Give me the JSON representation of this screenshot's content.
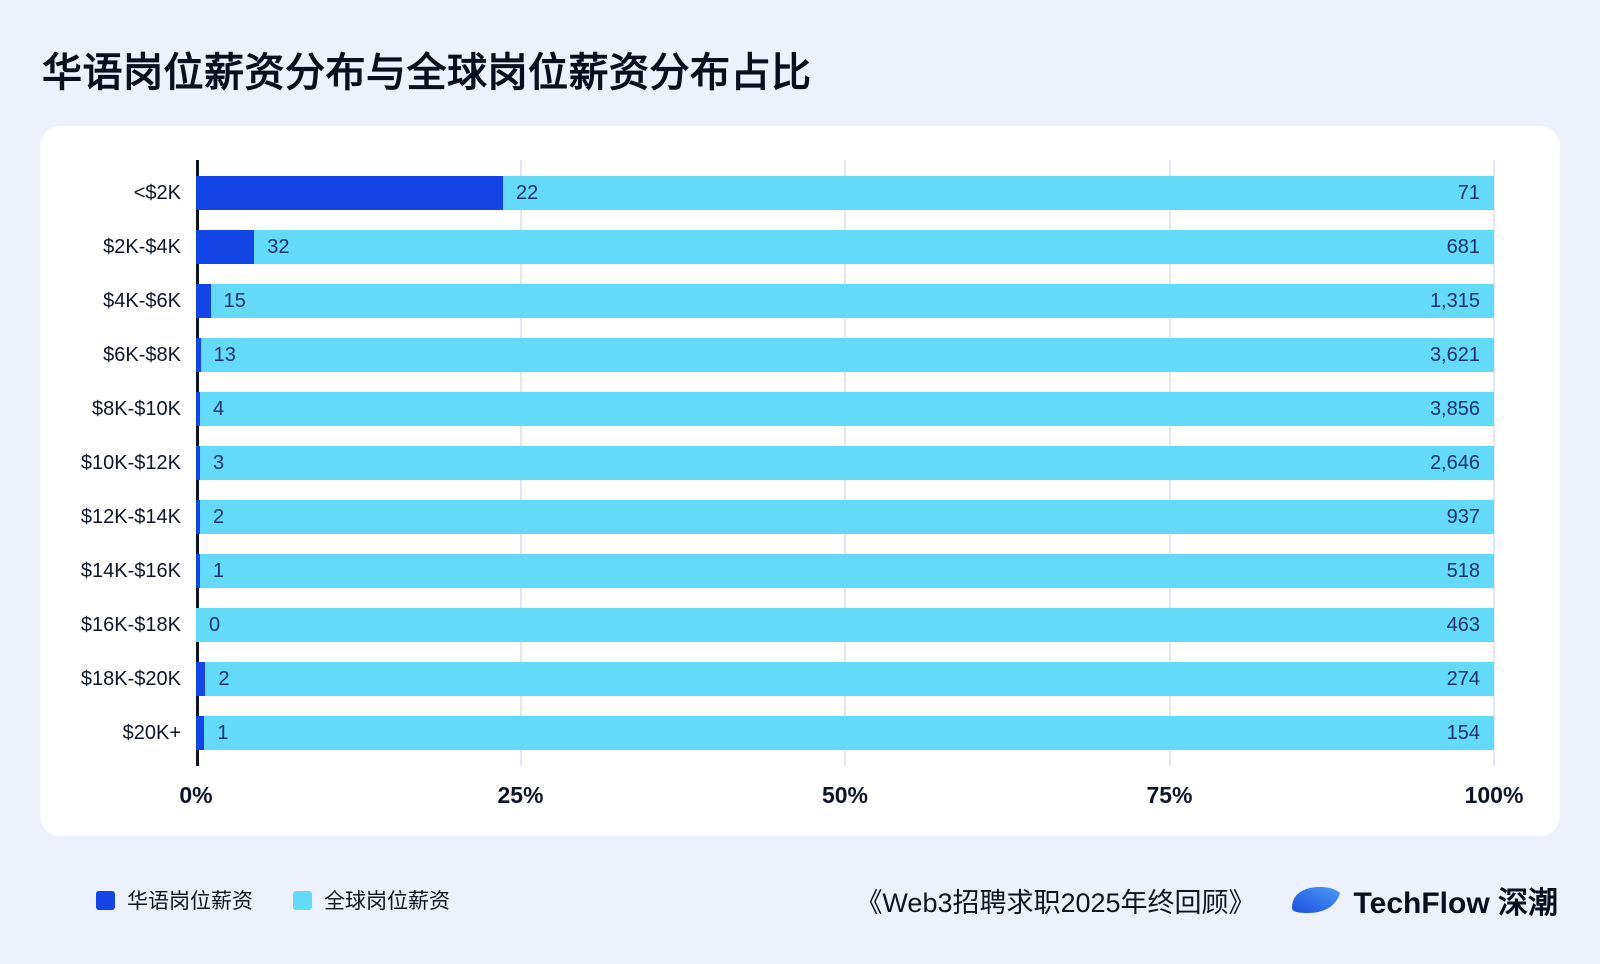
{
  "page": {
    "title": "华语岗位薪资分布与全球岗位薪资分布占比",
    "background_color": "#edf1fb"
  },
  "chart_data": {
    "type": "bar",
    "subtype": "horizontal-100pct-stacked",
    "title": "华语岗位薪资分布与全球岗位薪资分布占比",
    "categories": [
      "<$2K",
      "$2K-$4K",
      "$4K-$6K",
      "$6K-$8K",
      "$8K-$10K",
      "$10K-$12K",
      "$12K-$14K",
      "$14K-$16K",
      "$16K-$18K",
      "$18K-$20K",
      "$20K+"
    ],
    "series": [
      {
        "name": "华语岗位薪资",
        "color": "#1344e5",
        "values": [
          22,
          32,
          15,
          13,
          4,
          3,
          2,
          1,
          0,
          2,
          1
        ]
      },
      {
        "name": "全球岗位薪资",
        "color": "#63daf7",
        "values": [
          71,
          681,
          1315,
          3621,
          3856,
          2646,
          937,
          518,
          463,
          274,
          154
        ]
      }
    ],
    "value_labels": {
      "chinese": [
        "22",
        "32",
        "15",
        "13",
        "4",
        "3",
        "2",
        "1",
        "0",
        "2",
        "1"
      ],
      "global": [
        "71",
        "681",
        "1,315",
        "3,621",
        "3,856",
        "2,646",
        "937",
        "518",
        "463",
        "274",
        "154"
      ]
    },
    "x_ticks": [
      "0%",
      "25%",
      "50%",
      "75%",
      "100%"
    ],
    "x_tick_positions": [
      0,
      25,
      50,
      75,
      100
    ],
    "xlim": [
      0,
      100
    ],
    "grid": true,
    "legend_position": "bottom-left"
  },
  "footer": {
    "source": "《Web3招聘求职2025年终回顾》",
    "brand": "TechFlow 深潮",
    "brand_color": "#2b6cf0"
  }
}
